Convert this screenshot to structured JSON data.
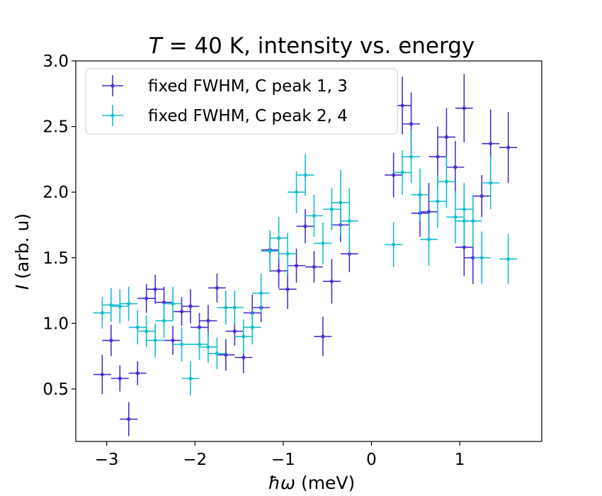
{
  "chart_data": {
    "type": "scatter",
    "title_italic": "T",
    "title_rest": " = 40 K, intensity vs. energy",
    "xlabel_symbol": "ħω",
    "xlabel_unit": " (meV)",
    "ylabel_symbol": "I",
    "ylabel_unit": " (arb. u)",
    "xlim": [
      -3.35,
      1.93
    ],
    "ylim": [
      0.1,
      3.0
    ],
    "xticks": [
      -3,
      -2,
      -1,
      0,
      1
    ],
    "xtick_labels": [
      "−3",
      "−2",
      "−1",
      "0",
      "1"
    ],
    "yticks": [
      0.5,
      1.0,
      1.5,
      2.0,
      2.5,
      3.0
    ],
    "ytick_labels": [
      "0.5",
      "1.0",
      "1.5",
      "2.0",
      "2.5",
      "3.0"
    ],
    "legend_position": "upper-left",
    "series": [
      {
        "name": "fixed FWHM, C peak 1, 3",
        "color": "#4b2fd0",
        "xerr": 0.1,
        "points": [
          {
            "x": -3.05,
            "y": 0.61,
            "yerr": 0.15
          },
          {
            "x": -2.95,
            "y": 0.87,
            "yerr": 0.12
          },
          {
            "x": -2.85,
            "y": 0.58,
            "yerr": 0.1
          },
          {
            "x": -2.75,
            "y": 0.27,
            "yerr": 0.13
          },
          {
            "x": -2.65,
            "y": 0.62,
            "yerr": 0.09
          },
          {
            "x": -2.55,
            "y": 1.19,
            "yerr": 0.11
          },
          {
            "x": -2.45,
            "y": 1.26,
            "yerr": 0.11
          },
          {
            "x": -2.35,
            "y": 1.16,
            "yerr": 0.12
          },
          {
            "x": -2.25,
            "y": 0.87,
            "yerr": 0.11
          },
          {
            "x": -2.15,
            "y": 1.09,
            "yerr": 0.11
          },
          {
            "x": -2.05,
            "y": 1.13,
            "yerr": 0.13
          },
          {
            "x": -1.95,
            "y": 0.97,
            "yerr": 0.11
          },
          {
            "x": -1.85,
            "y": 1.02,
            "yerr": 0.12
          },
          {
            "x": -1.75,
            "y": 1.27,
            "yerr": 0.11
          },
          {
            "x": -1.65,
            "y": 0.76,
            "yerr": 0.12
          },
          {
            "x": -1.55,
            "y": 0.94,
            "yerr": 0.11
          },
          {
            "x": -1.45,
            "y": 0.74,
            "yerr": 0.12
          },
          {
            "x": -1.35,
            "y": 1.08,
            "yerr": 0.14
          },
          {
            "x": -1.25,
            "y": 1.12,
            "yerr": 0.11
          },
          {
            "x": -1.15,
            "y": 1.56,
            "yerr": 0.12
          },
          {
            "x": -1.05,
            "y": 1.4,
            "yerr": 0.13
          },
          {
            "x": -0.95,
            "y": 1.26,
            "yerr": 0.15
          },
          {
            "x": -0.85,
            "y": 1.44,
            "yerr": 0.13
          },
          {
            "x": -0.75,
            "y": 1.74,
            "yerr": 0.13
          },
          {
            "x": -0.65,
            "y": 1.43,
            "yerr": 0.12
          },
          {
            "x": -0.55,
            "y": 0.9,
            "yerr": 0.15
          },
          {
            "x": -0.45,
            "y": 1.32,
            "yerr": 0.17
          },
          {
            "x": -0.35,
            "y": 1.75,
            "yerr": 0.13
          },
          {
            "x": -0.25,
            "y": 1.53,
            "yerr": 0.14
          },
          {
            "x": 0.25,
            "y": 2.13,
            "yerr": 0.17
          },
          {
            "x": 0.35,
            "y": 2.66,
            "yerr": 0.22
          },
          {
            "x": 0.45,
            "y": 2.52,
            "yerr": 0.24
          },
          {
            "x": 0.55,
            "y": 1.84,
            "yerr": 0.18
          },
          {
            "x": 0.65,
            "y": 1.85,
            "yerr": 0.22
          },
          {
            "x": 0.75,
            "y": 2.27,
            "yerr": 0.23
          },
          {
            "x": 0.85,
            "y": 2.42,
            "yerr": 0.22
          },
          {
            "x": 0.95,
            "y": 2.19,
            "yerr": 0.2
          },
          {
            "x": 1.05,
            "y": 2.64,
            "yerr": 0.26
          },
          {
            "x": 1.15,
            "y": 1.5,
            "yerr": 0.2
          },
          {
            "x": 1.25,
            "y": 1.97,
            "yerr": 0.16
          },
          {
            "x": 1.35,
            "y": 2.37,
            "yerr": 0.26
          },
          {
            "x": 1.55,
            "y": 2.34,
            "yerr": 0.27
          },
          {
            "x": 1.05,
            "y": 1.58,
            "yerr": 0.22
          }
        ]
      },
      {
        "name": "fixed FWHM, C peak 2, 4",
        "color": "#17becf",
        "xerr": 0.1,
        "points": [
          {
            "x": -3.05,
            "y": 1.08,
            "yerr": 0.12
          },
          {
            "x": -2.95,
            "y": 1.14,
            "yerr": 0.13
          },
          {
            "x": -2.85,
            "y": 1.13,
            "yerr": 0.13
          },
          {
            "x": -2.75,
            "y": 1.15,
            "yerr": 0.13
          },
          {
            "x": -2.65,
            "y": 0.97,
            "yerr": 0.13
          },
          {
            "x": -2.55,
            "y": 0.94,
            "yerr": 0.12
          },
          {
            "x": -2.45,
            "y": 0.87,
            "yerr": 0.13
          },
          {
            "x": -2.35,
            "y": 1.02,
            "yerr": 0.13
          },
          {
            "x": -2.25,
            "y": 1.15,
            "yerr": 0.13
          },
          {
            "x": -2.15,
            "y": 0.84,
            "yerr": 0.13
          },
          {
            "x": -2.05,
            "y": 0.58,
            "yerr": 0.13
          },
          {
            "x": -1.95,
            "y": 0.84,
            "yerr": 0.12
          },
          {
            "x": -1.85,
            "y": 0.82,
            "yerr": 0.12
          },
          {
            "x": -1.75,
            "y": 0.77,
            "yerr": 0.12
          },
          {
            "x": -1.65,
            "y": 1.12,
            "yerr": 0.13
          },
          {
            "x": -1.55,
            "y": 1.12,
            "yerr": 0.13
          },
          {
            "x": -1.45,
            "y": 0.9,
            "yerr": 0.13
          },
          {
            "x": -1.35,
            "y": 0.97,
            "yerr": 0.13
          },
          {
            "x": -1.25,
            "y": 1.23,
            "yerr": 0.15
          },
          {
            "x": -1.15,
            "y": 1.55,
            "yerr": 0.16
          },
          {
            "x": -1.05,
            "y": 1.65,
            "yerr": 0.16
          },
          {
            "x": -0.95,
            "y": 1.53,
            "yerr": 0.16
          },
          {
            "x": -0.85,
            "y": 2.0,
            "yerr": 0.16
          },
          {
            "x": -0.75,
            "y": 2.13,
            "yerr": 0.16
          },
          {
            "x": -0.65,
            "y": 1.82,
            "yerr": 0.16
          },
          {
            "x": -0.55,
            "y": 1.61,
            "yerr": 0.16
          },
          {
            "x": -0.45,
            "y": 1.87,
            "yerr": 0.16
          },
          {
            "x": -0.35,
            "y": 1.92,
            "yerr": 0.25
          },
          {
            "x": -0.25,
            "y": 1.78,
            "yerr": 0.25
          },
          {
            "x": 0.25,
            "y": 1.6,
            "yerr": 0.17
          },
          {
            "x": 0.35,
            "y": 2.15,
            "yerr": 0.17
          },
          {
            "x": 0.45,
            "y": 2.27,
            "yerr": 0.2
          },
          {
            "x": 0.55,
            "y": 1.98,
            "yerr": 0.2
          },
          {
            "x": 0.65,
            "y": 1.64,
            "yerr": 0.2
          },
          {
            "x": 0.75,
            "y": 1.93,
            "yerr": 0.2
          },
          {
            "x": 0.85,
            "y": 2.08,
            "yerr": 0.2
          },
          {
            "x": 0.95,
            "y": 1.81,
            "yerr": 0.2
          },
          {
            "x": 1.05,
            "y": 1.87,
            "yerr": 0.2
          },
          {
            "x": 1.15,
            "y": 1.78,
            "yerr": 0.2
          },
          {
            "x": 1.25,
            "y": 1.5,
            "yerr": 0.2
          },
          {
            "x": 1.35,
            "y": 2.07,
            "yerr": 0.2
          },
          {
            "x": 1.55,
            "y": 1.49,
            "yerr": 0.19
          },
          {
            "x": 1.05,
            "y": 1.78,
            "yerr": 0.19
          }
        ]
      }
    ]
  }
}
